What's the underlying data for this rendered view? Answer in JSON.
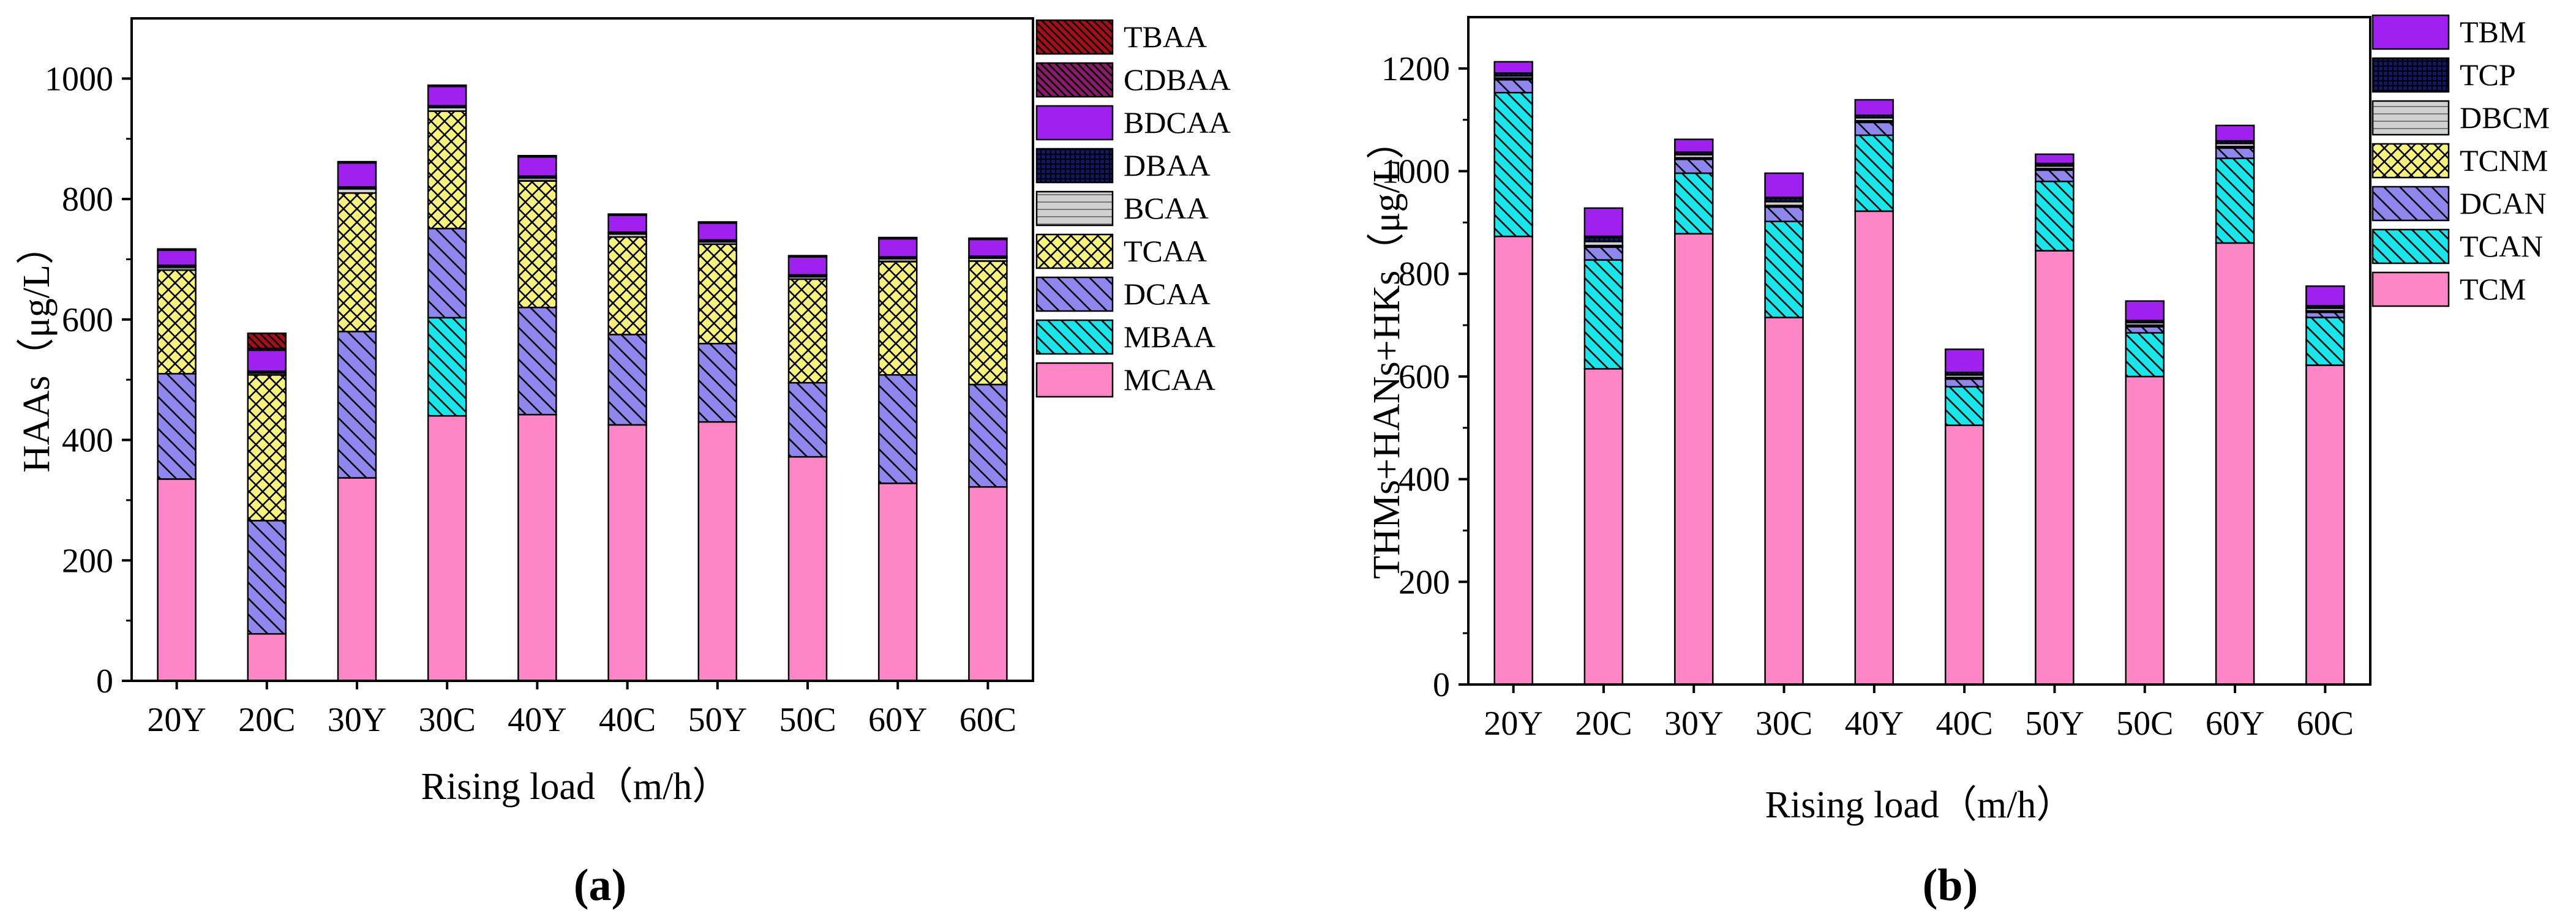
{
  "colors": {
    "TBAA": "#a50f15",
    "CDBAA": "#8a1a6a",
    "BDCAA": "#a020f0",
    "DBAA": "#0a1a6e",
    "BCAA": "#d0d0d0",
    "TCAA": "#f8f37a",
    "DCAA": "#8f86ee",
    "MBAA": "#19e6ea",
    "MCAA": "#ff86c6",
    "TBM": "#a020f0",
    "TCP": "#0a1a6e",
    "DBCM": "#d0d0d0",
    "TCNM": "#f8f37a",
    "DCAN": "#8f86ee",
    "TCAN": "#19e6ea",
    "TCM": "#ff86c6"
  },
  "panel_labels": [
    "(a)",
    "(b)"
  ],
  "chart_data": [
    {
      "type": "bar",
      "stacked": true,
      "panel_label": "(a)",
      "title": "",
      "xlabel": "Rising load（m/h）",
      "ylabel": "HAAs（μg/L）",
      "ylim": [
        0,
        1100
      ],
      "yticks": [
        "0",
        "200",
        "400",
        "600",
        "800",
        "1000"
      ],
      "grid": false,
      "legend": "right",
      "categories": [
        "20Y",
        "20C",
        "30Y",
        "30C",
        "40Y",
        "40C",
        "50Y",
        "50C",
        "60Y",
        "60C"
      ],
      "series": [
        {
          "name": "MCAA",
          "values": [
            335,
            78,
            337,
            440,
            442,
            425,
            430,
            372,
            328,
            322
          ]
        },
        {
          "name": "MBAA",
          "values": [
            0,
            0,
            0,
            163,
            0,
            0,
            0,
            0,
            0,
            0
          ]
        },
        {
          "name": "DCAA",
          "values": [
            175,
            188,
            243,
            148,
            178,
            150,
            130,
            123,
            180,
            170
          ]
        },
        {
          "name": "TCAA",
          "values": [
            172,
            242,
            230,
            195,
            210,
            162,
            165,
            172,
            188,
            205
          ]
        },
        {
          "name": "BCAA",
          "values": [
            5,
            3,
            7,
            6,
            5,
            5,
            4,
            4,
            5,
            5
          ]
        },
        {
          "name": "DBAA",
          "values": [
            3,
            3,
            3,
            3,
            3,
            3,
            3,
            3,
            3,
            3
          ]
        },
        {
          "name": "BDCAA",
          "values": [
            25,
            35,
            40,
            32,
            32,
            28,
            28,
            30,
            30,
            28
          ]
        },
        {
          "name": "CDBAA",
          "values": [
            2,
            3,
            2,
            2,
            2,
            2,
            2,
            2,
            2,
            2
          ]
        },
        {
          "name": "TBAA",
          "values": [
            0,
            25,
            0,
            0,
            0,
            0,
            0,
            0,
            0,
            0
          ]
        }
      ],
      "legend_order": [
        "TBAA",
        "CDBAA",
        "BDCAA",
        "DBAA",
        "BCAA",
        "TCAA",
        "DCAA",
        "MBAA",
        "MCAA"
      ]
    },
    {
      "type": "bar",
      "stacked": true,
      "panel_label": "(b)",
      "title": "",
      "xlabel": "Rising load（m/h）",
      "ylabel": "THMs+HANs+HKs（μg/L）",
      "ylim": [
        0,
        1300
      ],
      "yticks": [
        "0",
        "200",
        "400",
        "600",
        "800",
        "1000",
        "1200"
      ],
      "grid": false,
      "legend": "right",
      "categories": [
        "20Y",
        "20C",
        "30Y",
        "30C",
        "40Y",
        "40C",
        "50Y",
        "50C",
        "60Y",
        "60C"
      ],
      "series": [
        {
          "name": "TCM",
          "values": [
            873,
            615,
            878,
            715,
            922,
            505,
            845,
            600,
            860,
            622
          ]
        },
        {
          "name": "TCAN",
          "values": [
            280,
            212,
            118,
            187,
            148,
            75,
            135,
            85,
            165,
            93
          ]
        },
        {
          "name": "DCAN",
          "values": [
            25,
            25,
            27,
            28,
            25,
            15,
            22,
            12,
            20,
            10
          ]
        },
        {
          "name": "TCNM",
          "values": [
            3,
            3,
            3,
            3,
            3,
            3,
            3,
            3,
            3,
            3
          ]
        },
        {
          "name": "DBCM",
          "values": [
            5,
            8,
            6,
            8,
            6,
            5,
            5,
            5,
            6,
            5
          ]
        },
        {
          "name": "TCP",
          "values": [
            5,
            10,
            5,
            8,
            5,
            5,
            5,
            4,
            5,
            5
          ]
        },
        {
          "name": "TBM",
          "values": [
            22,
            55,
            25,
            47,
            30,
            45,
            18,
            38,
            30,
            38
          ]
        }
      ],
      "legend_order": [
        "TBM",
        "TCP",
        "DBCM",
        "TCNM",
        "DCAN",
        "TCAN",
        "TCM"
      ]
    }
  ]
}
